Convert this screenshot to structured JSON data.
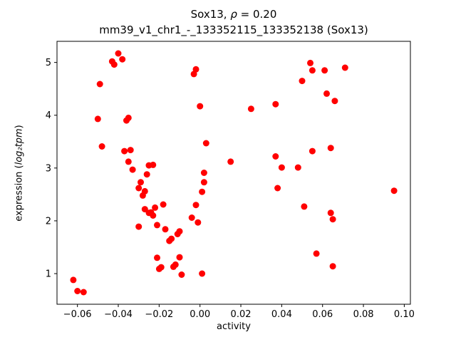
{
  "chart_data": {
    "type": "scatter",
    "title_parts": {
      "pre": "Sox13, ",
      "rho": "ρ",
      "post": " = 0.20"
    },
    "subtitle": "mm39_v1_chr1_-_133352115_133352138 (Sox13)",
    "xlabel": "activity",
    "ylabel_parts": {
      "pre": "expression (",
      "math": "log₂tpm",
      "post": ")"
    },
    "xlim": [
      -0.07,
      0.103
    ],
    "ylim": [
      0.42,
      5.4
    ],
    "x_ticks": [
      -0.06,
      -0.04,
      -0.02,
      0.0,
      0.02,
      0.04,
      0.06,
      0.08,
      0.1
    ],
    "x_ticklabels": [
      "−0.06",
      "−0.04",
      "−0.02",
      "0.00",
      "0.02",
      "0.04",
      "0.06",
      "0.08",
      "0.10"
    ],
    "y_ticks": [
      1,
      2,
      3,
      4,
      5
    ],
    "y_ticklabels": [
      "1",
      "2",
      "3",
      "4",
      "5"
    ],
    "grid": false,
    "legend": "none",
    "marker_color": "#ff0000",
    "points": [
      [
        -0.062,
        0.88
      ],
      [
        -0.06,
        0.67
      ],
      [
        -0.057,
        0.65
      ],
      [
        -0.05,
        3.93
      ],
      [
        -0.049,
        4.59
      ],
      [
        -0.048,
        3.41
      ],
      [
        -0.043,
        5.02
      ],
      [
        -0.042,
        4.96
      ],
      [
        -0.04,
        5.17
      ],
      [
        -0.038,
        5.06
      ],
      [
        -0.037,
        3.32
      ],
      [
        -0.036,
        3.9
      ],
      [
        -0.035,
        3.95
      ],
      [
        -0.035,
        3.12
      ],
      [
        -0.034,
        3.34
      ],
      [
        -0.033,
        2.97
      ],
      [
        -0.03,
        2.62
      ],
      [
        -0.03,
        1.89
      ],
      [
        -0.029,
        2.73
      ],
      [
        -0.028,
        2.48
      ],
      [
        -0.027,
        2.56
      ],
      [
        -0.027,
        2.22
      ],
      [
        -0.026,
        2.88
      ],
      [
        -0.025,
        3.05
      ],
      [
        -0.025,
        2.15
      ],
      [
        -0.024,
        2.16
      ],
      [
        -0.023,
        3.06
      ],
      [
        -0.023,
        2.1
      ],
      [
        -0.022,
        2.25
      ],
      [
        -0.021,
        1.92
      ],
      [
        -0.021,
        1.3
      ],
      [
        -0.02,
        1.09
      ],
      [
        -0.019,
        1.12
      ],
      [
        -0.018,
        2.31
      ],
      [
        -0.017,
        1.84
      ],
      [
        -0.015,
        1.62
      ],
      [
        -0.014,
        1.66
      ],
      [
        -0.013,
        1.13
      ],
      [
        -0.012,
        1.17
      ],
      [
        -0.011,
        1.75
      ],
      [
        -0.01,
        1.8
      ],
      [
        -0.01,
        1.31
      ],
      [
        -0.009,
        0.98
      ],
      [
        -0.004,
        2.06
      ],
      [
        -0.003,
        4.78
      ],
      [
        -0.002,
        4.87
      ],
      [
        -0.002,
        2.3
      ],
      [
        -0.001,
        1.97
      ],
      [
        0.0,
        4.17
      ],
      [
        0.001,
        2.55
      ],
      [
        0.001,
        1.0
      ],
      [
        0.002,
        2.73
      ],
      [
        0.002,
        2.91
      ],
      [
        0.003,
        3.47
      ],
      [
        0.015,
        3.12
      ],
      [
        0.025,
        4.12
      ],
      [
        0.037,
        4.21
      ],
      [
        0.037,
        3.22
      ],
      [
        0.038,
        2.62
      ],
      [
        0.04,
        3.01
      ],
      [
        0.048,
        3.01
      ],
      [
        0.05,
        4.65
      ],
      [
        0.051,
        2.27
      ],
      [
        0.054,
        4.99
      ],
      [
        0.055,
        4.85
      ],
      [
        0.055,
        3.32
      ],
      [
        0.057,
        1.38
      ],
      [
        0.061,
        4.85
      ],
      [
        0.062,
        4.41
      ],
      [
        0.064,
        3.38
      ],
      [
        0.064,
        2.15
      ],
      [
        0.065,
        2.03
      ],
      [
        0.065,
        1.14
      ],
      [
        0.066,
        4.27
      ],
      [
        0.071,
        4.9
      ],
      [
        0.095,
        2.57
      ]
    ]
  }
}
